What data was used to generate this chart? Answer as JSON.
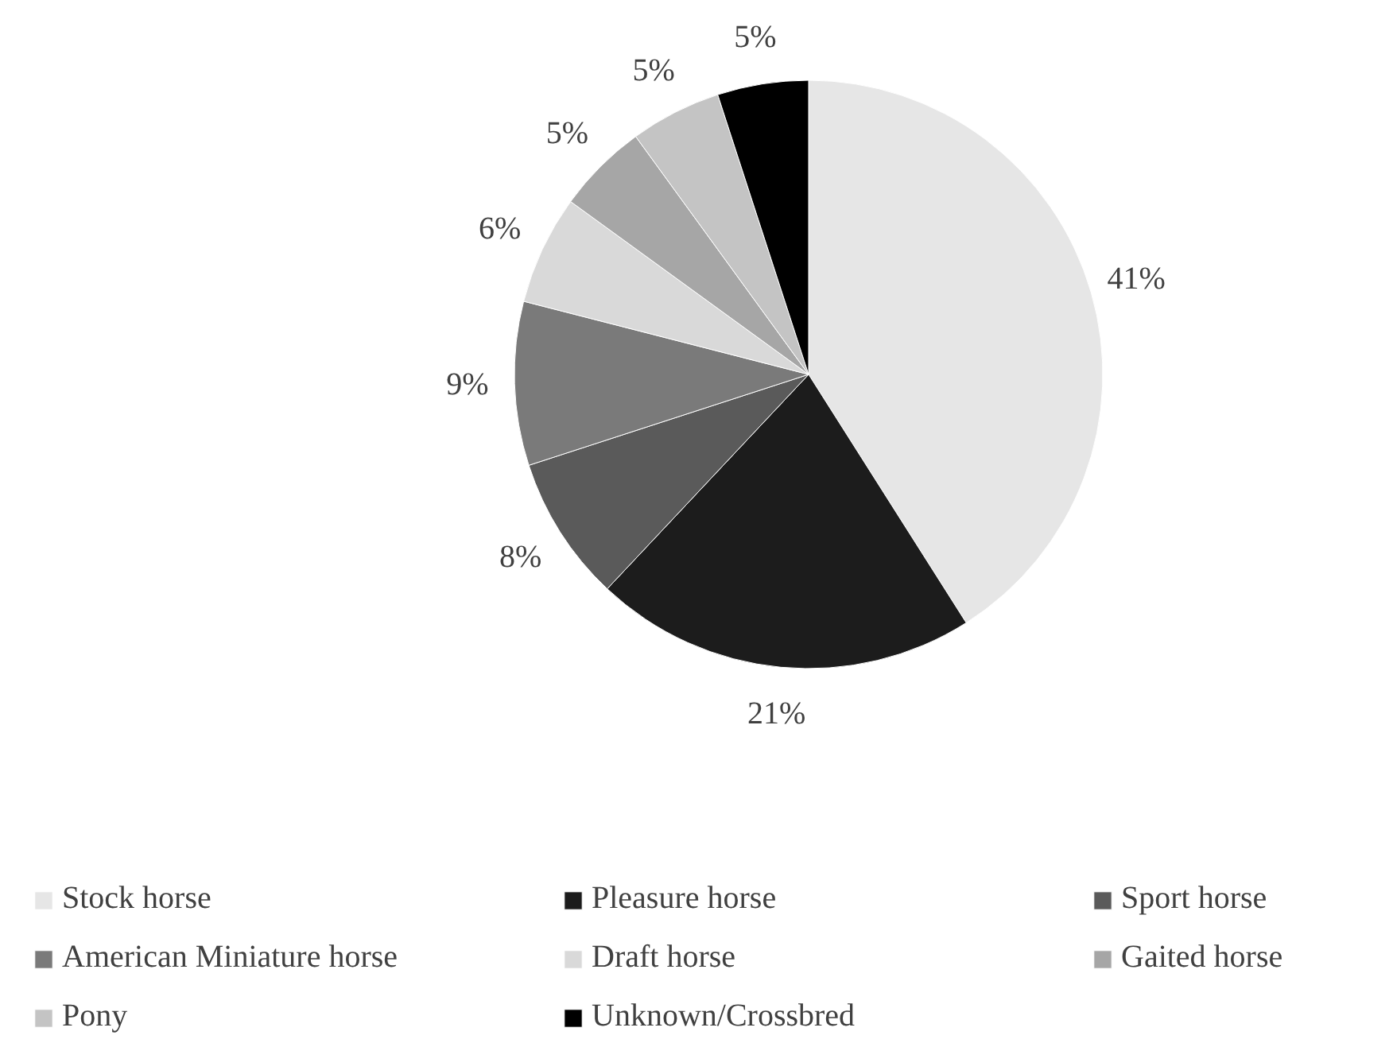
{
  "chart_data": {
    "type": "pie",
    "categories": [
      "Stock horse",
      "Pleasure horse",
      "Sport horse",
      "American Miniature horse",
      "Draft horse",
      "Gaited horse",
      "Pony",
      "Unknown/Crossbred"
    ],
    "values": [
      41,
      21,
      8,
      9,
      6,
      5,
      5,
      5
    ],
    "value_labels": [
      "41%",
      "21%",
      "8%",
      "9%",
      "6%",
      "5%",
      "5%",
      "5%"
    ],
    "colors": [
      "#e6e6e6",
      "#1c1c1c",
      "#5a5a5a",
      "#7a7a7a",
      "#d9d9d9",
      "#a6a6a6",
      "#c4c4c4",
      "#000000"
    ],
    "legend": "bottom"
  }
}
